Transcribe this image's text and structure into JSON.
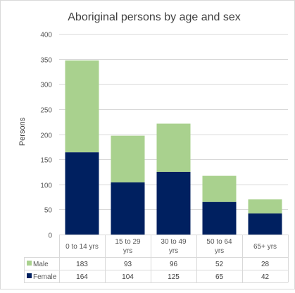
{
  "chart_data": {
    "type": "bar",
    "stacked": true,
    "title": "Aboriginal persons by age and sex",
    "ylabel": "Persons",
    "xlabel": "",
    "ylim": [
      0,
      400
    ],
    "yticks": [
      0,
      50,
      100,
      150,
      200,
      250,
      300,
      350,
      400
    ],
    "categories": [
      "0 to 14 yrs",
      "15 to 29 yrs",
      "30 to 49 yrs",
      "50 to 64 yrs",
      "65+ yrs"
    ],
    "series": [
      {
        "name": "Female",
        "values": [
          164,
          104,
          125,
          65,
          42
        ],
        "color": "#002060"
      },
      {
        "name": "Male",
        "values": [
          183,
          93,
          96,
          52,
          28
        ],
        "color": "#a9d18e"
      }
    ],
    "table_rows": [
      "Male",
      "Female"
    ],
    "grid": true,
    "legend": "data-table"
  }
}
